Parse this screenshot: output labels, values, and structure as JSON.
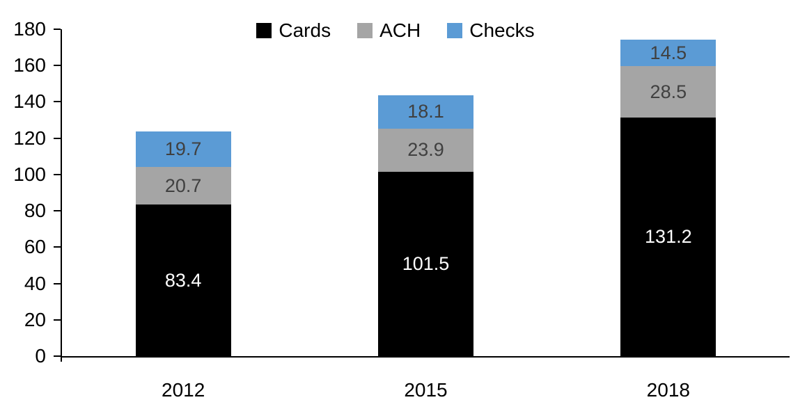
{
  "chart_data": {
    "type": "bar",
    "stacked": true,
    "title": "",
    "xlabel": "",
    "ylabel": "",
    "categories": [
      "2012",
      "2015",
      "2018"
    ],
    "series": [
      {
        "name": "Cards",
        "color": "#000000",
        "label_color": "#ffffff",
        "values": [
          83.4,
          101.5,
          131.2
        ]
      },
      {
        "name": "ACH",
        "color": "#a5a5a5",
        "label_color": "#404040",
        "values": [
          20.7,
          23.9,
          28.5
        ]
      },
      {
        "name": "Checks",
        "color": "#5b9bd5",
        "label_color": "#404040",
        "values": [
          19.7,
          18.1,
          14.5
        ]
      }
    ],
    "data_labels": {
      "2012": {
        "Cards": "83.4",
        "ACH": "20.7",
        "Checks": "19.7"
      },
      "2015": {
        "Cards": "101.5",
        "ACH": "23.9",
        "Checks": "18.1"
      },
      "2018": {
        "Cards": "131.2",
        "ACH": "28.5",
        "Checks": "14.5"
      }
    },
    "ylim": [
      0,
      180
    ],
    "ytick_step": 20,
    "yticks": [
      0,
      20,
      40,
      60,
      80,
      100,
      120,
      140,
      160,
      180
    ],
    "grid": false,
    "legend_position": "top",
    "legend_labels": [
      "Cards",
      "ACH",
      "Checks"
    ],
    "axis_color": "#000000"
  }
}
